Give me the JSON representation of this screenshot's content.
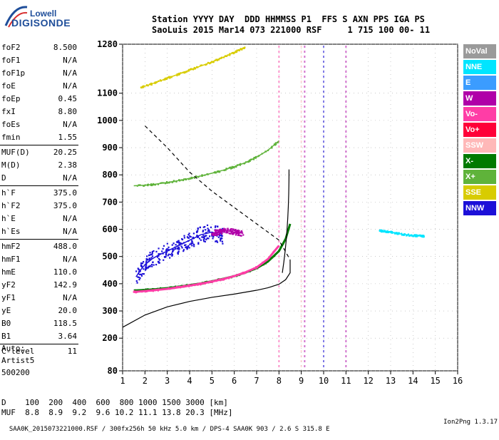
{
  "logo": {
    "line1": "Lowell",
    "line2": "DIGISONDE"
  },
  "header": {
    "line1": "Station YYYY DAY  DDD HHMMSS P1  FFS S AXN PPS IGA PS",
    "line2": "SaoLuis 2015 Mar14 073 221000 RSF     1 715 100 00- 11"
  },
  "params": {
    "group1": [
      {
        "k": "foF2",
        "v": "8.500"
      },
      {
        "k": "foF1",
        "v": "N/A"
      },
      {
        "k": "foF1p",
        "v": "N/A"
      },
      {
        "k": "foE",
        "v": "N/A"
      },
      {
        "k": "foEp",
        "v": "0.45"
      },
      {
        "k": "fxI",
        "v": "8.80"
      },
      {
        "k": "foEs",
        "v": "N/A"
      },
      {
        "k": "fmin",
        "v": "1.55"
      }
    ],
    "group2": [
      {
        "k": "MUF(D)",
        "v": "20.25"
      },
      {
        "k": "M(D)",
        "v": "2.38"
      },
      {
        "k": "D",
        "v": "N/A"
      }
    ],
    "group3": [
      {
        "k": "h`F",
        "v": "375.0"
      },
      {
        "k": "h`F2",
        "v": "375.0"
      },
      {
        "k": "h`E",
        "v": "N/A"
      },
      {
        "k": "h`Es",
        "v": "N/A"
      }
    ],
    "group4": [
      {
        "k": "hmF2",
        "v": "488.0"
      },
      {
        "k": "hmF1",
        "v": "N/A"
      },
      {
        "k": "hmE",
        "v": "110.0"
      },
      {
        "k": "yF2",
        "v": "142.9"
      },
      {
        "k": "yF1",
        "v": "N/A"
      },
      {
        "k": "yE",
        "v": "20.0"
      },
      {
        "k": "B0",
        "v": "118.5"
      },
      {
        "k": "B1",
        "v": "3.64"
      }
    ],
    "group5": [
      {
        "k": "C-level",
        "v": "11"
      }
    ]
  },
  "auto": {
    "line1": "Auto:",
    "line2": "Artist5",
    "line3": "500200"
  },
  "legend": [
    {
      "label": "NoVal",
      "color": "#9a9a9a"
    },
    {
      "label": "NNE",
      "color": "#00e5ff"
    },
    {
      "label": "E",
      "color": "#3b9cff"
    },
    {
      "label": "W",
      "color": "#b000a8"
    },
    {
      "label": "Vo-",
      "color": "#ff3da6"
    },
    {
      "label": "Vo+",
      "color": "#ff0038"
    },
    {
      "label": "SSW",
      "color": "#ffb8b8"
    },
    {
      "label": "X-",
      "color": "#007a00"
    },
    {
      "label": "X+",
      "color": "#5fb33a"
    },
    {
      "label": "SSE",
      "color": "#d8cc00"
    },
    {
      "label": "NNW",
      "color": "#1c10d8"
    }
  ],
  "footer": {
    "line1": "D    100  200  400  600  800 1000 1500 3000 [km]",
    "line2": "MUF  8.8  8.9  9.2  9.6 10.2 11.1 13.8 20.3 [MHz]",
    "line3": "SAA0K_2015073221000.RSF / 300fx256h 50 kHz 5.0 km / DPS-4 SAA0K 903 / 2.6 S 315.8 E",
    "version": "Ion2Png 1.3.17"
  },
  "chart_data": {
    "type": "scatter",
    "title": "",
    "xlabel": "",
    "ylabel": "",
    "xlim": [
      1,
      16
    ],
    "ylim": [
      80,
      1280
    ],
    "x_ticks": [
      1,
      2,
      3,
      4,
      5,
      6,
      7,
      8,
      9,
      10,
      11,
      12,
      13,
      14,
      15,
      16
    ],
    "y_ticks": [
      80,
      200,
      300,
      400,
      500,
      600,
      700,
      800,
      900,
      1000,
      1100,
      1280
    ],
    "grid": true,
    "series": [
      {
        "name": "X-",
        "color": "#007a00",
        "x": [
          1.5,
          2.0,
          2.5,
          3.0,
          3.5,
          4.0,
          4.5,
          5.0,
          5.5,
          6.0,
          6.5,
          7.0,
          7.5,
          8.0,
          8.3,
          8.5
        ],
        "y": [
          375,
          377,
          380,
          384,
          389,
          395,
          401,
          409,
          418,
          428,
          441,
          457,
          481,
          520,
          565,
          620
        ]
      },
      {
        "name": "Vo-",
        "color": "#ff3da6",
        "x": [
          1.5,
          2.0,
          2.5,
          3.0,
          3.5,
          4.0,
          4.5,
          5.0,
          5.5,
          6.0,
          6.5,
          7.0,
          7.5,
          8.0
        ],
        "y": [
          370,
          373,
          377,
          381,
          387,
          393,
          400,
          408,
          417,
          428,
          442,
          460,
          490,
          540
        ]
      },
      {
        "name": "X+",
        "color": "#5fb33a",
        "x": [
          1.5,
          2.0,
          2.5,
          3.0,
          3.5,
          4.0,
          4.5,
          5.0,
          5.5,
          6.0,
          6.5,
          7.0,
          7.5,
          8.0
        ],
        "y": [
          760,
          762,
          766,
          772,
          779,
          787,
          796,
          806,
          817,
          830,
          845,
          865,
          890,
          925
        ]
      },
      {
        "name": "SSE",
        "color": "#d8cc00",
        "x": [
          1.8,
          2.5,
          3.0,
          3.5,
          4.0,
          4.5,
          5.0,
          5.5,
          6.0,
          6.5
        ],
        "y": [
          1120,
          1140,
          1155,
          1170,
          1185,
          1200,
          1215,
          1232,
          1250,
          1270
        ]
      },
      {
        "name": "NNW",
        "color": "#1c10d8",
        "x": [
          1.6,
          1.8,
          2.0,
          2.3,
          2.6,
          3.0,
          3.5,
          4.0,
          4.5,
          5.0,
          5.5
        ],
        "y": [
          425,
          450,
          470,
          490,
          505,
          520,
          540,
          560,
          580,
          590,
          575
        ]
      },
      {
        "name": "W",
        "color": "#b000a8",
        "x": [
          5.0,
          5.3,
          5.6,
          6.0,
          6.4
        ],
        "y": [
          585,
          590,
          595,
          590,
          585
        ]
      },
      {
        "name": "NNE",
        "color": "#00e5ff",
        "x": [
          12.5,
          13.0,
          13.5,
          14.0,
          14.5
        ],
        "y": [
          595,
          590,
          582,
          577,
          575
        ]
      }
    ],
    "profile_solid": {
      "x": [
        1.0,
        2.0,
        3.0,
        4.0,
        5.0,
        6.0,
        7.0,
        7.5,
        8.0,
        8.3,
        8.5,
        8.5
      ],
      "y": [
        240,
        285,
        315,
        335,
        350,
        362,
        376,
        385,
        398,
        415,
        440,
        488
      ]
    },
    "profile_dashed": {
      "x": [
        2.0,
        3.0,
        4.0,
        5.0,
        6.0,
        7.0,
        8.0,
        8.5
      ],
      "y": [
        980,
        900,
        810,
        740,
        680,
        620,
        560,
        488
      ]
    }
  }
}
